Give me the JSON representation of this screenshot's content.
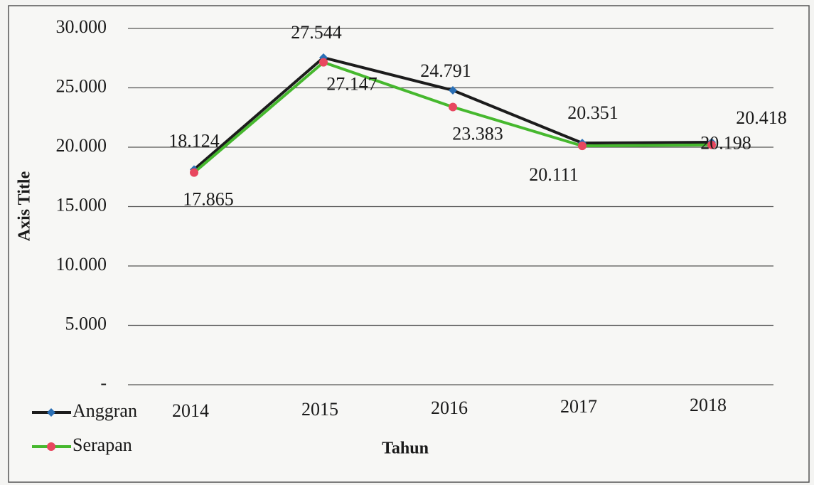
{
  "chart_data": {
    "type": "line",
    "x_label": "Tahun",
    "y_label": "Axis Title",
    "categories": [
      "2014",
      "2015",
      "2016",
      "2017",
      "2018"
    ],
    "series": [
      {
        "name": "Anggran",
        "color": "#1c1c1c",
        "marker_color": "#2a6fb5",
        "marker": "diamond",
        "values": [
          18124,
          27544,
          24791,
          20351,
          20418
        ],
        "value_labels": [
          "18.124",
          "27.544",
          "24.791",
          "20.351",
          "20.418"
        ]
      },
      {
        "name": "Serapan",
        "color": "#46b82e",
        "marker_color": "#e8475f",
        "marker": "circle",
        "values": [
          17865,
          27147,
          23383,
          20111,
          20198
        ],
        "value_labels": [
          "17.865",
          "27.147",
          "23.383",
          "20.111",
          "20.198"
        ]
      }
    ],
    "ylim": [
      0,
      30000
    ],
    "yticks": [
      {
        "value": 0,
        "label": "-"
      },
      {
        "value": 5000,
        "label": "5.000"
      },
      {
        "value": 10000,
        "label": "10.000"
      },
      {
        "value": 15000,
        "label": "15.000"
      },
      {
        "value": 20000,
        "label": "20.000"
      },
      {
        "value": 25000,
        "label": "25.000"
      },
      {
        "value": 30000,
        "label": "30.000"
      }
    ],
    "grid": true,
    "legend": "bottom-left"
  }
}
